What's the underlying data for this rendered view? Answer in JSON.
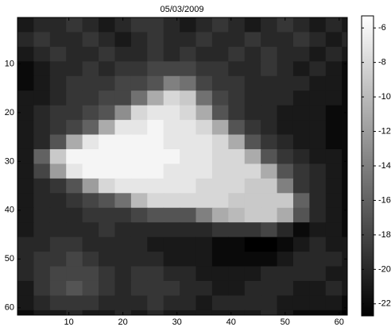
{
  "chart_data": {
    "type": "heatmap",
    "title": "05/03/2009",
    "colormap": "gray",
    "x": [
      2,
      5,
      8,
      11,
      14,
      17,
      20,
      23,
      26,
      29,
      32,
      35,
      38,
      41,
      44,
      47,
      50,
      53,
      56,
      59,
      62
    ],
    "y": [
      2,
      5,
      8,
      11,
      14,
      17,
      20,
      23,
      26,
      29,
      32,
      35,
      38,
      41,
      44,
      47,
      50,
      53,
      56,
      59,
      62
    ],
    "z": [
      [
        -21,
        -20,
        -20,
        -19,
        -20,
        -21,
        -20,
        -19,
        -19,
        -20,
        -21,
        -20,
        -19,
        -20,
        -21,
        -20,
        -19,
        -20,
        -21,
        -20,
        -21
      ],
      [
        -20,
        -19,
        -20,
        -20,
        -19,
        -20,
        -21,
        -20,
        -19,
        -20,
        -20,
        -19,
        -20,
        -20,
        -19,
        -20,
        -20,
        -19,
        -20,
        -21,
        -20
      ],
      [
        -21,
        -20,
        -19,
        -20,
        -20,
        -19,
        -20,
        -20,
        -19,
        -20,
        -19,
        -20,
        -20,
        -19,
        -20,
        -19,
        -20,
        -20,
        -21,
        -20,
        -21
      ],
      [
        -22,
        -21,
        -20,
        -20,
        -19,
        -20,
        -19,
        -19,
        -18,
        -18,
        -18,
        -19,
        -19,
        -20,
        -20,
        -19,
        -20,
        -21,
        -20,
        -21,
        -22
      ],
      [
        -22,
        -21,
        -20,
        -19,
        -19,
        -19,
        -18,
        -18,
        -17,
        -14,
        -15,
        -18,
        -19,
        -19,
        -20,
        -20,
        -20,
        -20,
        -21,
        -21,
        -22
      ],
      [
        -21,
        -21,
        -20,
        -19,
        -19,
        -18,
        -18,
        -15,
        -11,
        -8,
        -9,
        -15,
        -18,
        -19,
        -20,
        -20,
        -20,
        -21,
        -21,
        -21,
        -22
      ],
      [
        -21,
        -20,
        -19,
        -19,
        -18,
        -17,
        -13,
        -8,
        -7,
        -7,
        -8,
        -11,
        -17,
        -19,
        -20,
        -20,
        -21,
        -21,
        -21,
        -22,
        -22
      ],
      [
        -21,
        -20,
        -19,
        -18,
        -16,
        -11,
        -7,
        -7,
        -6,
        -7,
        -7,
        -8,
        -11,
        -17,
        -19,
        -20,
        -21,
        -21,
        -21,
        -22,
        -22
      ],
      [
        -21,
        -20,
        -17,
        -11,
        -7,
        -6,
        -6,
        -6,
        -6,
        -7,
        -7,
        -7,
        -8,
        -11,
        -17,
        -19,
        -20,
        -21,
        -21,
        -22,
        -22
      ],
      [
        -21,
        -16,
        -9,
        -6,
        -6,
        -6,
        -6,
        -6,
        -6,
        -6,
        -7,
        -7,
        -8,
        -8,
        -11,
        -17,
        -19,
        -20,
        -21,
        -21,
        -22
      ],
      [
        -21,
        -18,
        -12,
        -7,
        -6,
        -6,
        -6,
        -6,
        -6,
        -7,
        -7,
        -7,
        -8,
        -8,
        -8,
        -11,
        -17,
        -19,
        -20,
        -21,
        -22
      ],
      [
        -21,
        -20,
        -19,
        -17,
        -12,
        -8,
        -7,
        -7,
        -7,
        -7,
        -7,
        -8,
        -8,
        -8,
        -9,
        -9,
        -14,
        -19,
        -20,
        -21,
        -22
      ],
      [
        -21,
        -20,
        -20,
        -19,
        -18,
        -17,
        -15,
        -10,
        -8,
        -8,
        -8,
        -8,
        -8,
        -9,
        -9,
        -9,
        -9,
        -16,
        -20,
        -21,
        -22
      ],
      [
        -21,
        -20,
        -20,
        -20,
        -19,
        -19,
        -19,
        -18,
        -17,
        -17,
        -17,
        -14,
        -11,
        -10,
        -9,
        -9,
        -11,
        -17,
        -20,
        -21,
        -22
      ],
      [
        -21,
        -20,
        -20,
        -20,
        -20,
        -19,
        -20,
        -20,
        -20,
        -20,
        -20,
        -20,
        -19,
        -19,
        -19,
        -18,
        -20,
        -22,
        -21,
        -21,
        -22
      ],
      [
        -20,
        -20,
        -19,
        -19,
        -20,
        -20,
        -20,
        -20,
        -21,
        -21,
        -21,
        -21,
        -22,
        -22,
        -23,
        -23,
        -22,
        -21,
        -20,
        -21,
        -21
      ],
      [
        -20,
        -19,
        -19,
        -18,
        -19,
        -20,
        -20,
        -20,
        -20,
        -21,
        -21,
        -21,
        -22,
        -22,
        -22,
        -22,
        -21,
        -20,
        -20,
        -20,
        -21
      ],
      [
        -20,
        -19,
        -18,
        -18,
        -18,
        -19,
        -20,
        -19,
        -19,
        -20,
        -20,
        -21,
        -21,
        -21,
        -21,
        -20,
        -20,
        -20,
        -20,
        -21,
        -21
      ],
      [
        -21,
        -19,
        -18,
        -17,
        -18,
        -19,
        -20,
        -19,
        -19,
        -19,
        -20,
        -20,
        -21,
        -21,
        -20,
        -20,
        -20,
        -21,
        -21,
        -20,
        -21
      ],
      [
        -21,
        -20,
        -19,
        -19,
        -19,
        -20,
        -20,
        -20,
        -19,
        -20,
        -20,
        -21,
        -20,
        -20,
        -20,
        -20,
        -21,
        -21,
        -21,
        -21,
        -22
      ],
      [
        -22,
        -21,
        -21,
        -20,
        -21,
        -21,
        -20,
        -21,
        -20,
        -21,
        -21,
        -21,
        -21,
        -21,
        -21,
        -20,
        -21,
        -22,
        -22,
        -22,
        -23
      ]
    ],
    "xlim": [
      0.5,
      61.5
    ],
    "ylim": [
      0.5,
      61.5
    ],
    "xticks": [
      10,
      20,
      30,
      40,
      50,
      60
    ],
    "yticks": [
      10,
      20,
      30,
      40,
      50,
      60
    ],
    "clim": [
      -22.7,
      -5.3
    ],
    "colorbar_ticks": [
      -6,
      -8,
      -10,
      -12,
      -14,
      -16,
      -18,
      -20,
      -22
    ]
  }
}
